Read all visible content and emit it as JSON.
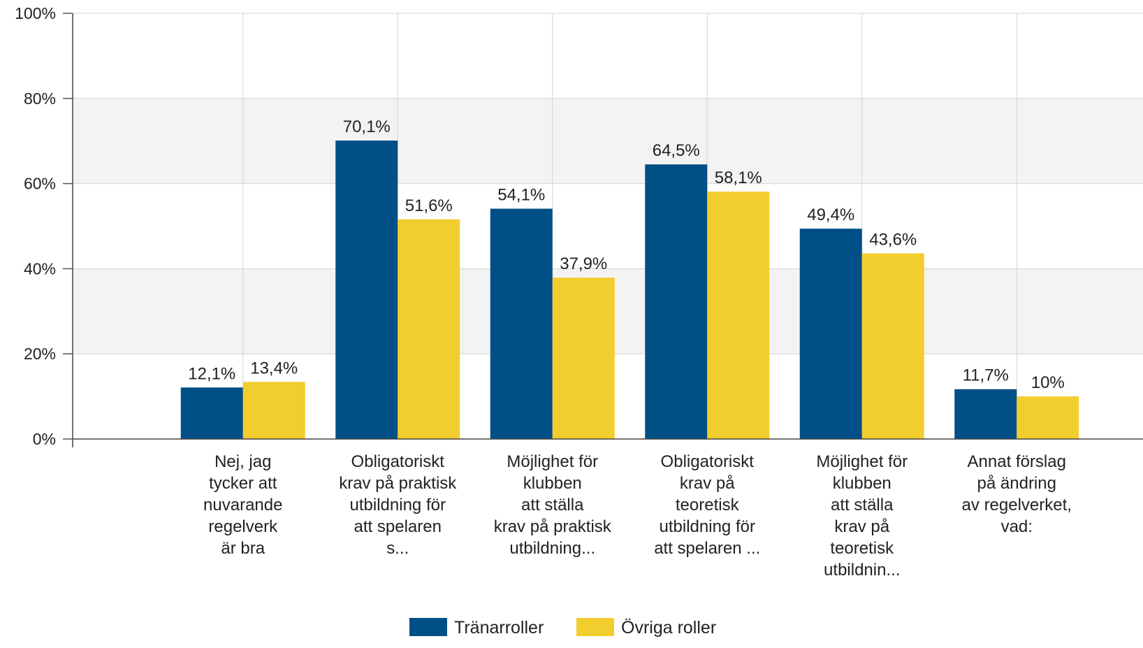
{
  "chart_data": {
    "type": "bar",
    "title": "",
    "xlabel": "",
    "ylabel": "",
    "ylim": [
      0,
      100
    ],
    "yticks": [
      "0%",
      "20%",
      "40%",
      "60%",
      "80%",
      "100%"
    ],
    "grid": true,
    "legend_position": "bottom",
    "categories": [
      [
        "Nej, jag",
        "tycker att",
        "nuvarande",
        "regelverk",
        "är bra"
      ],
      [
        "Obligatoriskt",
        "krav på praktisk",
        "utbildning för",
        "att spelaren",
        "s..."
      ],
      [
        "Möjlighet för",
        "klubben",
        "att ställa",
        "krav på praktisk",
        "utbildning..."
      ],
      [
        "Obligatoriskt",
        "krav på",
        "teoretisk",
        "utbildning för",
        "att spelaren ..."
      ],
      [
        "Möjlighet för",
        "klubben",
        "att ställa",
        "krav på",
        "teoretisk",
        "utbildnin..."
      ],
      [
        "Annat förslag",
        "på ändring",
        "av regelverket,",
        "vad:"
      ]
    ],
    "series": [
      {
        "name": "Tränarroller",
        "color": "#004F87",
        "values": [
          12.1,
          70.1,
          54.1,
          64.5,
          49.4,
          11.7
        ],
        "labels": [
          "12,1%",
          "70,1%",
          "54,1%",
          "64,5%",
          "49,4%",
          "11,7%"
        ]
      },
      {
        "name": "Övriga roller",
        "color": "#F2CD2E",
        "values": [
          13.4,
          51.6,
          37.9,
          58.1,
          43.6,
          10
        ],
        "labels": [
          "13,4%",
          "51,6%",
          "37,9%",
          "58,1%",
          "43,6%",
          "10%"
        ]
      }
    ]
  }
}
